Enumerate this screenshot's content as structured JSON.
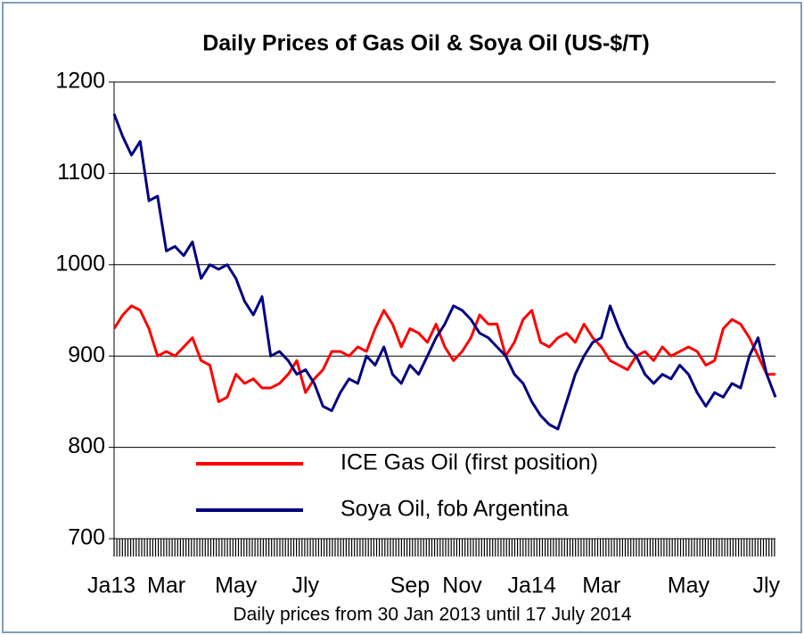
{
  "chart_data": {
    "type": "line",
    "title": "Daily Prices of Gas Oil & Soya Oil (US-$/T)",
    "x_label": "Daily prices from 30 Jan 2013 until 17 July 2014",
    "categories": [
      "Ja13",
      null,
      null,
      null,
      null,
      null,
      "Mar",
      null,
      null,
      null,
      null,
      null,
      null,
      null,
      "May",
      null,
      null,
      null,
      null,
      null,
      null,
      null,
      "Jly",
      null,
      null,
      null,
      null,
      null,
      null,
      null,
      null,
      null,
      null,
      null,
      "Sep",
      null,
      null,
      null,
      null,
      null,
      "Nov",
      null,
      null,
      null,
      null,
      null,
      null,
      null,
      "Ja14",
      null,
      null,
      null,
      null,
      null,
      null,
      null,
      "Mar",
      null,
      null,
      null,
      null,
      null,
      null,
      null,
      null,
      null,
      "May",
      null,
      null,
      null,
      null,
      null,
      null,
      null,
      null,
      null,
      "Jly"
    ],
    "series": [
      {
        "name": "ICE Gas Oil (first position)",
        "color": "#ff0000",
        "values": [
          930,
          945,
          955,
          950,
          930,
          900,
          905,
          900,
          910,
          920,
          895,
          890,
          850,
          855,
          880,
          870,
          875,
          865,
          865,
          870,
          880,
          895,
          860,
          875,
          885,
          905,
          905,
          900,
          910,
          905,
          930,
          950,
          935,
          910,
          930,
          925,
          915,
          935,
          910,
          895,
          905,
          920,
          945,
          935,
          935,
          900,
          915,
          940,
          950,
          915,
          910,
          920,
          925,
          915,
          935,
          920,
          910,
          895,
          890,
          885,
          900,
          905,
          895,
          910,
          900,
          905,
          910,
          905,
          890,
          895,
          930,
          940,
          935,
          920,
          900,
          880,
          880
        ]
      },
      {
        "name": "Soya Oil, fob Argentina",
        "color": "#000080",
        "values": [
          1165,
          1140,
          1120,
          1135,
          1070,
          1075,
          1015,
          1020,
          1010,
          1025,
          985,
          1000,
          995,
          1000,
          985,
          960,
          945,
          965,
          900,
          905,
          895,
          880,
          885,
          870,
          845,
          840,
          860,
          875,
          870,
          900,
          890,
          910,
          880,
          870,
          890,
          880,
          900,
          920,
          935,
          955,
          950,
          940,
          925,
          920,
          910,
          900,
          880,
          870,
          850,
          835,
          825,
          820,
          850,
          880,
          900,
          915,
          920,
          955,
          930,
          910,
          900,
          880,
          870,
          880,
          875,
          890,
          880,
          860,
          845,
          860,
          855,
          870,
          865,
          900,
          920,
          880,
          855
        ]
      }
    ],
    "ylim": [
      700,
      1200
    ],
    "yticks": [
      700,
      800,
      900,
      1000,
      1100,
      1200
    ],
    "grid": true,
    "legend": "lower center"
  }
}
